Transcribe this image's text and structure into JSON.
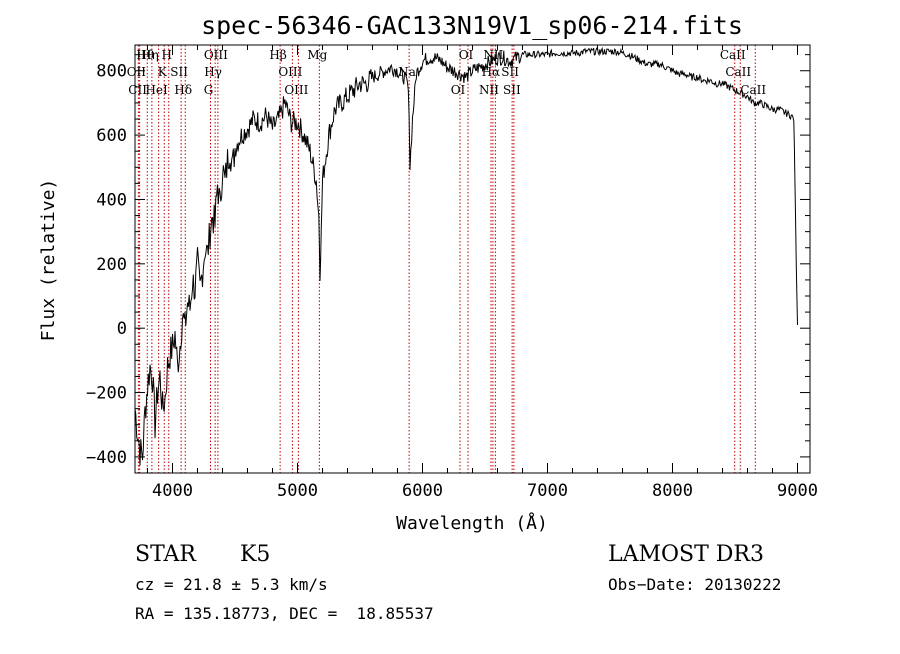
{
  "chart_data": {
    "type": "line",
    "title": "spec-56346-GAC133N19V1_sp06-214.fits",
    "xlabel": "Wavelength (Å)",
    "ylabel": "Flux (relative)",
    "xlim": [
      3700,
      9100
    ],
    "ylim": [
      -450,
      880
    ],
    "xticks": [
      4000,
      5000,
      6000,
      7000,
      8000,
      9000
    ],
    "yticks": [
      -400,
      -200,
      0,
      200,
      400,
      600,
      800
    ],
    "xtick_labels": [
      "4000",
      "5000",
      "6000",
      "7000",
      "8000",
      "9000"
    ],
    "ytick_labels": [
      "−400",
      "−200",
      "0",
      "200",
      "400",
      "600",
      "800"
    ],
    "series": [
      {
        "name": "flux",
        "x": [
          3700,
          3720,
          3740,
          3760,
          3780,
          3800,
          3820,
          3840,
          3860,
          3880,
          3900,
          3920,
          3940,
          3960,
          3980,
          4000,
          4020,
          4040,
          4060,
          4080,
          4100,
          4120,
          4140,
          4160,
          4180,
          4200,
          4220,
          4240,
          4260,
          4280,
          4300,
          4320,
          4340,
          4360,
          4380,
          4400,
          4420,
          4440,
          4460,
          4480,
          4500,
          4550,
          4600,
          4650,
          4700,
          4750,
          4800,
          4850,
          4900,
          4950,
          5000,
          5050,
          5100,
          5150,
          5170,
          5180,
          5190,
          5200,
          5250,
          5300,
          5350,
          5400,
          5450,
          5500,
          5550,
          5600,
          5650,
          5700,
          5750,
          5800,
          5850,
          5880,
          5893,
          5900,
          5920,
          5950,
          6000,
          6050,
          6100,
          6150,
          6200,
          6250,
          6300,
          6350,
          6400,
          6450,
          6500,
          6550,
          6600,
          6650,
          6700,
          6750,
          6800,
          6850,
          6900,
          6950,
          7000,
          7050,
          7100,
          7150,
          7200,
          7250,
          7300,
          7350,
          7400,
          7450,
          7500,
          7550,
          7600,
          7650,
          7700,
          7750,
          7800,
          7850,
          7900,
          7950,
          8000,
          8050,
          8100,
          8150,
          8200,
          8250,
          8300,
          8350,
          8400,
          8450,
          8500,
          8550,
          8600,
          8650,
          8700,
          8750,
          8800,
          8850,
          8900,
          8950,
          8970,
          8980,
          8990,
          9000
        ],
        "y": [
          -250,
          -320,
          -380,
          -400,
          -260,
          -180,
          -120,
          -150,
          -300,
          -200,
          -150,
          -250,
          -220,
          -120,
          -80,
          -60,
          -20,
          -120,
          -50,
          40,
          0,
          80,
          60,
          150,
          120,
          200,
          120,
          180,
          250,
          230,
          300,
          350,
          320,
          450,
          380,
          500,
          450,
          520,
          560,
          500,
          560,
          600,
          620,
          650,
          640,
          660,
          620,
          650,
          700,
          640,
          640,
          600,
          550,
          460,
          350,
          180,
          300,
          460,
          600,
          680,
          700,
          720,
          740,
          760,
          760,
          780,
          790,
          800,
          810,
          800,
          780,
          760,
          680,
          500,
          650,
          790,
          830,
          840,
          840,
          830,
          810,
          800,
          790,
          780,
          800,
          810,
          820,
          830,
          840,
          840,
          830,
          840,
          850,
          850,
          850,
          850,
          850,
          855,
          855,
          855,
          855,
          855,
          860,
          860,
          860,
          860,
          860,
          860,
          855,
          850,
          840,
          830,
          820,
          820,
          820,
          810,
          800,
          790,
          790,
          780,
          780,
          770,
          770,
          760,
          760,
          750,
          740,
          730,
          720,
          700,
          700,
          690,
          680,
          680,
          670,
          660,
          650,
          450,
          200,
          10
        ]
      }
    ],
    "lines": [
      {
        "label": "Hθ",
        "wave": 3798
      },
      {
        "label": "OII",
        "wave": 3727
      },
      {
        "label": "CII",
        "wave": 3737
      },
      {
        "label": "Hη",
        "wave": 3835
      },
      {
        "label": "K",
        "wave": 3934
      },
      {
        "label": "HeI",
        "wave": 3889
      },
      {
        "label": "H",
        "wave": 3970
      },
      {
        "label": "SII",
        "wave": 4069
      },
      {
        "label": "Hδ",
        "wave": 4102
      },
      {
        "label": "OIII",
        "wave": 4363
      },
      {
        "label": "Hγ",
        "wave": 4341
      },
      {
        "label": "G",
        "wave": 4304
      },
      {
        "label": "Hβ",
        "wave": 4861
      },
      {
        "label": "OIII",
        "wave": 4959
      },
      {
        "label": "OIII",
        "wave": 5007
      },
      {
        "label": "Mg",
        "wave": 5175
      },
      {
        "label": "Na",
        "wave": 5893
      },
      {
        "label": "OI",
        "wave": 6300
      },
      {
        "label": "OI",
        "wave": 6364
      },
      {
        "label": "Hα",
        "wave": 6563
      },
      {
        "label": "NII",
        "wave": 6548
      },
      {
        "label": "NII",
        "wave": 6583
      },
      {
        "label": "SII",
        "wave": 6717
      },
      {
        "label": "SII",
        "wave": 6731
      },
      {
        "label": "CaII",
        "wave": 8498
      },
      {
        "label": "CaII",
        "wave": 8542
      },
      {
        "label": "CaII",
        "wave": 8662
      }
    ]
  },
  "info": {
    "obj_class": "STAR",
    "subclass": "K5",
    "survey": "LAMOST DR3",
    "cz": "cz = 21.8 ± 5.3 km/s",
    "obs_date": "Obs−Date: 20130222",
    "radec": "RA = 135.18773, DEC =  18.85537"
  }
}
